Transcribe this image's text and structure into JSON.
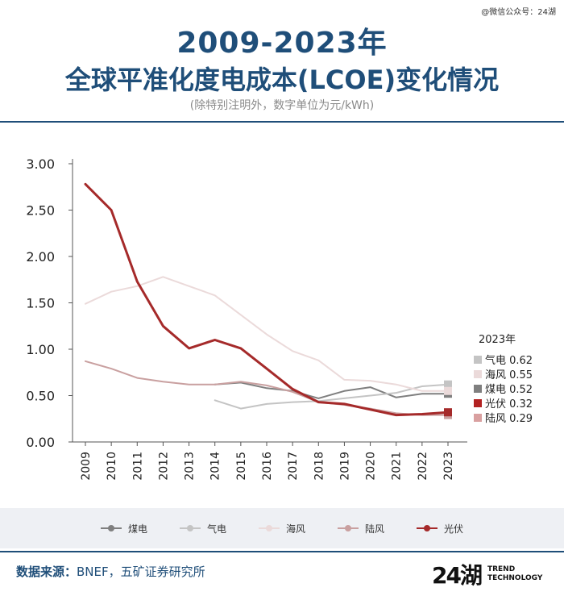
{
  "watermark": "@微信公众号：24湖",
  "title_line1": "2009-2023年",
  "title_line2": "全球平准化度电成本(LCOE)变化情况",
  "subtitle": "(除特别注明外，数字单位为元/kWh)",
  "chart_data": {
    "type": "line",
    "x": [
      2009,
      2010,
      2011,
      2012,
      2013,
      2014,
      2015,
      2016,
      2017,
      2018,
      2019,
      2020,
      2021,
      2022,
      2023
    ],
    "ylim": [
      0,
      3.0
    ],
    "yticks": [
      "0.00",
      "0.50",
      "1.00",
      "1.50",
      "2.00",
      "2.50",
      "3.00"
    ],
    "grid": false,
    "series": [
      {
        "name": "煤电",
        "color": "#7f7f7f",
        "width": 2,
        "values": [
          null,
          null,
          null,
          null,
          null,
          0.62,
          0.64,
          0.58,
          0.55,
          0.47,
          0.55,
          0.59,
          0.48,
          0.52,
          0.52
        ]
      },
      {
        "name": "气电",
        "color": "#c4c4c4",
        "width": 2,
        "values": [
          null,
          null,
          null,
          null,
          null,
          0.45,
          0.36,
          0.41,
          0.43,
          0.44,
          0.47,
          0.5,
          0.53,
          0.6,
          0.62
        ]
      },
      {
        "name": "海风",
        "color": "#ebdada",
        "width": 2,
        "values": [
          1.49,
          1.62,
          1.68,
          1.78,
          1.68,
          1.58,
          1.37,
          1.16,
          0.98,
          0.88,
          0.67,
          0.66,
          0.62,
          0.55,
          0.55
        ]
      },
      {
        "name": "陆风",
        "color": "#c9a0a0",
        "width": 2,
        "values": [
          0.87,
          0.79,
          0.69,
          0.65,
          0.62,
          0.62,
          0.65,
          0.61,
          0.54,
          0.43,
          0.4,
          0.36,
          0.31,
          0.29,
          0.29
        ]
      },
      {
        "name": "光伏",
        "color": "#a52a2a",
        "width": 3,
        "values": [
          2.78,
          2.5,
          1.73,
          1.25,
          1.01,
          1.1,
          1.01,
          0.79,
          0.57,
          0.43,
          0.41,
          0.35,
          0.29,
          0.3,
          0.32
        ]
      }
    ],
    "annotation_title": "2023年",
    "annotations": [
      {
        "label": "气电 0.62",
        "color": "#c4c4c4"
      },
      {
        "label": "海风 0.55",
        "color": "#ebdada"
      },
      {
        "label": "煤电 0.52",
        "color": "#7f7f7f"
      },
      {
        "label": "光伏 0.32",
        "color": "#b22222"
      },
      {
        "label": "陆风 0.29",
        "color": "#d9a0a0"
      }
    ]
  },
  "legend": [
    {
      "label": "煤电",
      "color": "#7f7f7f"
    },
    {
      "label": "气电",
      "color": "#c4c4c4"
    },
    {
      "label": "海风",
      "color": "#ebdada"
    },
    {
      "label": "陆风",
      "color": "#c9a0a0"
    },
    {
      "label": "光伏",
      "color": "#a52a2a"
    }
  ],
  "source_label": "数据来源：",
  "source_text": "BNEF，五矿证券研究所",
  "logo": {
    "mark": "24湖",
    "line1": "TREND",
    "line2": "TECHNOLOGY"
  }
}
